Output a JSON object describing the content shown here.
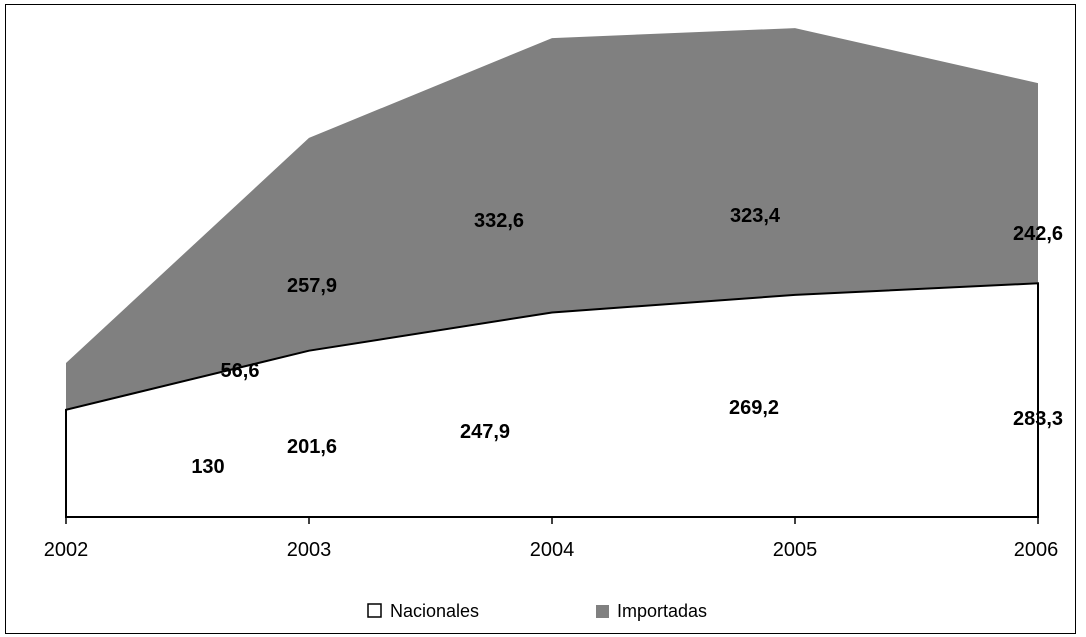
{
  "chart_data": {
    "type": "area",
    "stacked": true,
    "categories": [
      "2002",
      "2003",
      "2004",
      "2005",
      "2006"
    ],
    "series": [
      {
        "name": "Nacionales",
        "values": [
          130,
          201.6,
          247.9,
          269.2,
          283.3
        ],
        "labels": [
          "130",
          "201,6",
          "247,9",
          "269,2",
          "283,3"
        ],
        "color": "#ffffff"
      },
      {
        "name": "Importadas",
        "values": [
          56.6,
          257.9,
          332.6,
          323.4,
          242.6
        ],
        "labels": [
          "56,6",
          "257,9",
          "332,6",
          "323,4",
          "242,6"
        ],
        "color": "#808080"
      }
    ],
    "ylim": [
      0,
      600
    ],
    "legend_position": "bottom",
    "grid": false
  }
}
